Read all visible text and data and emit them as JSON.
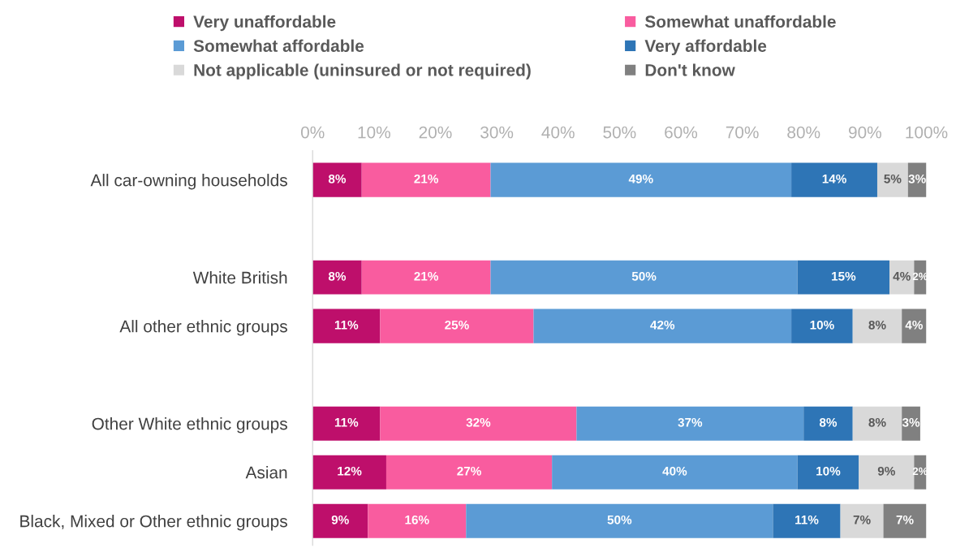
{
  "chart_data": {
    "type": "bar",
    "orientation": "horizontal",
    "stacked": true,
    "legend": "top",
    "grid": false,
    "categories": [
      "All car-owning households",
      null,
      "White British",
      "All other ethnic groups",
      null,
      "Other White ethnic groups",
      "Asian",
      "Black, Mixed or Other ethnic groups"
    ],
    "xlim": [
      0,
      100
    ],
    "xticks": [
      {
        "value": 0,
        "label": "0%"
      },
      {
        "value": 10,
        "label": "10%"
      },
      {
        "value": 20,
        "label": "20%"
      },
      {
        "value": 30,
        "label": "30%"
      },
      {
        "value": 40,
        "label": "40%"
      },
      {
        "value": 50,
        "label": "50%"
      },
      {
        "value": 60,
        "label": "60%"
      },
      {
        "value": 70,
        "label": "70%"
      },
      {
        "value": 80,
        "label": "80%"
      },
      {
        "value": 90,
        "label": "90%"
      },
      {
        "value": 100,
        "label": "100%"
      }
    ],
    "series": [
      {
        "name": "Very unaffordable",
        "color": "#be0f6b",
        "values": [
          8,
          null,
          8,
          11,
          null,
          11,
          12,
          9
        ],
        "value_labels": [
          "8%",
          null,
          "8%",
          "11%",
          null,
          "11%",
          "12%",
          "9%"
        ]
      },
      {
        "name": "Somewhat unaffordable",
        "color": "#f95c9f",
        "values": [
          21,
          null,
          21,
          25,
          null,
          32,
          27,
          16
        ],
        "value_labels": [
          "21%",
          null,
          "21%",
          "25%",
          null,
          "32%",
          "27%",
          "16%"
        ]
      },
      {
        "name": "Somewhat affordable",
        "color": "#5b9bd5",
        "values": [
          49,
          null,
          50,
          42,
          null,
          37,
          40,
          50
        ],
        "value_labels": [
          "49%",
          null,
          "50%",
          "42%",
          null,
          "37%",
          "40%",
          "50%"
        ]
      },
      {
        "name": "Very affordable",
        "color": "#2e75b6",
        "values": [
          14,
          null,
          15,
          10,
          null,
          8,
          10,
          11
        ],
        "value_labels": [
          "14%",
          null,
          "15%",
          "10%",
          null,
          "8%",
          "10%",
          "11%"
        ]
      },
      {
        "name": "Not applicable (uninsured or not required)",
        "color": "#d9d9d9",
        "values": [
          5,
          null,
          4,
          8,
          null,
          8,
          9,
          7
        ],
        "value_labels": [
          "5%",
          null,
          "4%",
          "8%",
          null,
          "8%",
          "9%",
          "7%"
        ]
      },
      {
        "name": "Don't know",
        "color": "#808080",
        "values": [
          3,
          null,
          2,
          4,
          null,
          3,
          2,
          7
        ],
        "value_labels": [
          "3%",
          null,
          "2%",
          "4%",
          null,
          "3%",
          "2%",
          "7%"
        ]
      }
    ]
  }
}
